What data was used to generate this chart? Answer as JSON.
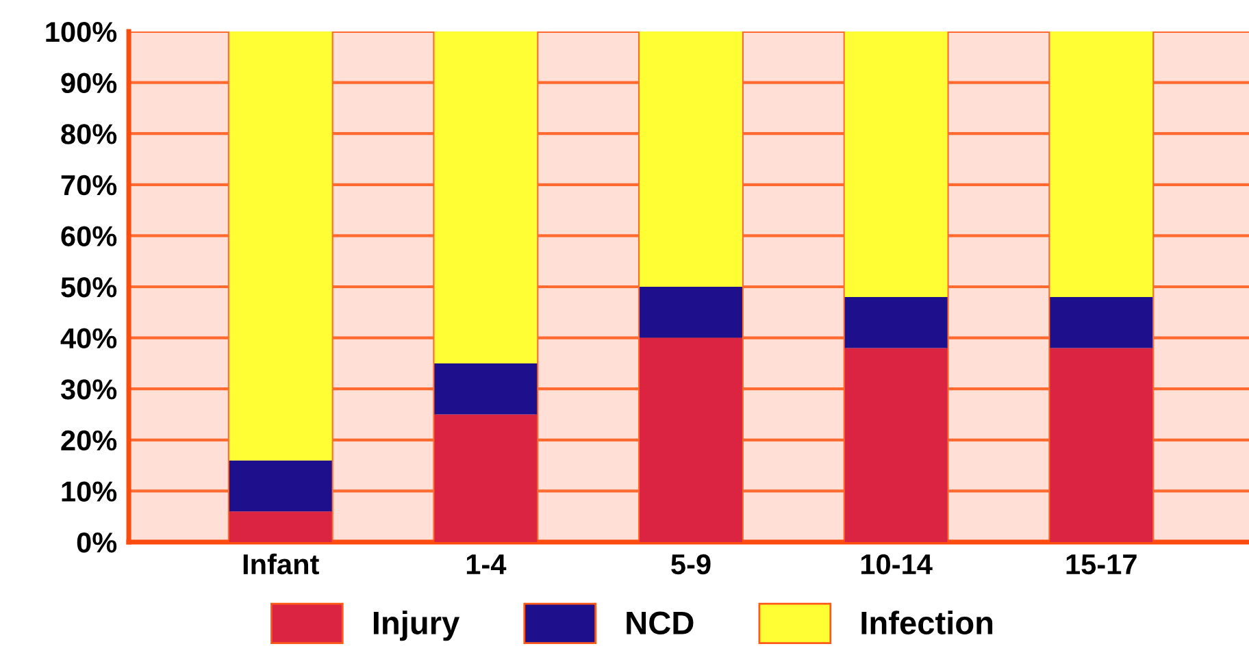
{
  "chart_data": {
    "type": "bar",
    "stacked": true,
    "categories": [
      "Infant",
      "1-4",
      "5-9",
      "10-14",
      "15-17"
    ],
    "series": [
      {
        "name": "Injury",
        "color": "#da2442",
        "values": [
          6,
          25,
          40,
          38,
          38
        ]
      },
      {
        "name": "NCD",
        "color": "#1e108c",
        "values": [
          10,
          10,
          10,
          10,
          10
        ]
      },
      {
        "name": "Infection",
        "color": "#fffd33",
        "values": [
          84,
          65,
          50,
          52,
          52
        ]
      }
    ],
    "ylim": [
      0,
      100
    ],
    "yticks": [
      {
        "value": 0,
        "label": "0%"
      },
      {
        "value": 10,
        "label": "10%"
      },
      {
        "value": 20,
        "label": "20%"
      },
      {
        "value": 30,
        "label": "30%"
      },
      {
        "value": 40,
        "label": "40%"
      },
      {
        "value": 50,
        "label": "50%"
      },
      {
        "value": 60,
        "label": "60%"
      },
      {
        "value": 70,
        "label": "70%"
      },
      {
        "value": 80,
        "label": "80%"
      },
      {
        "value": 90,
        "label": "90%"
      },
      {
        "value": 100,
        "label": "100%"
      }
    ],
    "grid": true,
    "legend": "bottom"
  }
}
